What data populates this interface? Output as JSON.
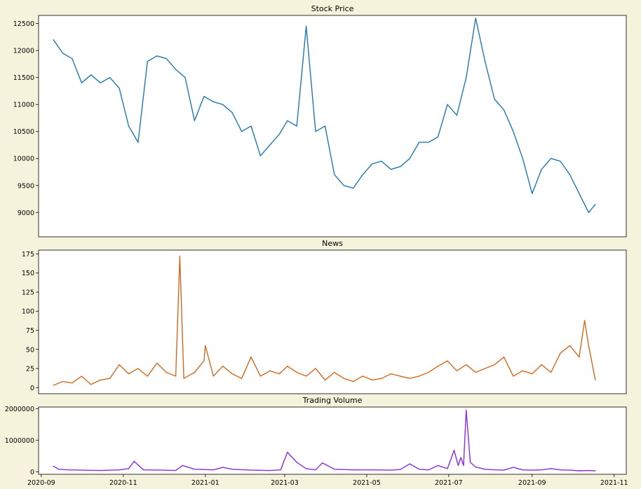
{
  "chart_data": [
    {
      "type": "line",
      "title": "Stock Price",
      "color": "#1f78b4",
      "ylim": [
        8550,
        12650
      ],
      "yticks": [
        9000,
        9500,
        10000,
        10500,
        11000,
        11500,
        12000,
        12500
      ],
      "x_range": [
        "2020-08-30",
        "2021-11-10"
      ],
      "x": [
        "2020-09-10",
        "2020-09-17",
        "2020-09-24",
        "2020-10-01",
        "2020-10-08",
        "2020-10-15",
        "2020-10-22",
        "2020-10-29",
        "2020-11-05",
        "2020-11-12",
        "2020-11-19",
        "2020-11-26",
        "2020-12-03",
        "2020-12-10",
        "2020-12-17",
        "2020-12-24",
        "2020-12-31",
        "2021-01-07",
        "2021-01-14",
        "2021-01-21",
        "2021-01-28",
        "2021-02-04",
        "2021-02-11",
        "2021-02-18",
        "2021-02-25",
        "2021-03-03",
        "2021-03-10",
        "2021-03-17",
        "2021-03-24",
        "2021-03-31",
        "2021-04-07",
        "2021-04-14",
        "2021-04-21",
        "2021-04-28",
        "2021-05-05",
        "2021-05-12",
        "2021-05-19",
        "2021-05-26",
        "2021-06-02",
        "2021-06-09",
        "2021-06-16",
        "2021-06-23",
        "2021-06-30",
        "2021-07-07",
        "2021-07-14",
        "2021-07-21",
        "2021-07-28",
        "2021-08-04",
        "2021-08-11",
        "2021-08-18",
        "2021-08-25",
        "2021-09-01",
        "2021-09-08",
        "2021-09-15",
        "2021-09-22",
        "2021-09-29",
        "2021-10-06",
        "2021-10-13"
      ],
      "values": [
        12200,
        11950,
        11850,
        11400,
        11550,
        11400,
        11500,
        11300,
        10600,
        10300,
        11800,
        11900,
        11850,
        11650,
        11500,
        10700,
        11150,
        11050,
        11000,
        10850,
        10500,
        10600,
        10050,
        10250,
        10450,
        10700,
        10600,
        12450,
        10500,
        10600,
        9700,
        9500,
        9450,
        9700,
        9900,
        9950,
        9800,
        9850,
        10000,
        10300,
        10300,
        10400,
        11000,
        10800,
        11500,
        12600,
        11800,
        11100,
        10900,
        10500,
        10000,
        9350,
        9800,
        10000,
        9950,
        9700,
        9350,
        9000
      ],
      "segments_note": "line continues to 2021-10-18 at 9150",
      "end_x": "2021-10-18",
      "end_value": 9150
    },
    {
      "type": "line",
      "title": "News",
      "color": "#d2691e",
      "ylim": [
        -8,
        180
      ],
      "yticks": [
        0,
        25,
        50,
        75,
        100,
        125,
        150,
        175
      ],
      "x_range": [
        "2020-08-30",
        "2021-11-10"
      ],
      "x": [
        "2020-09-10",
        "2020-09-17",
        "2020-09-24",
        "2020-10-01",
        "2020-10-08",
        "2020-10-15",
        "2020-10-22",
        "2020-10-29",
        "2020-11-05",
        "2020-11-12",
        "2020-11-19",
        "2020-11-26",
        "2020-12-03",
        "2020-12-10",
        "2020-12-13",
        "2020-12-16",
        "2020-12-24",
        "2020-12-31",
        "2021-01-01",
        "2021-01-07",
        "2021-01-14",
        "2021-01-21",
        "2021-01-28",
        "2021-02-04",
        "2021-02-11",
        "2021-02-18",
        "2021-02-25",
        "2021-03-03",
        "2021-03-10",
        "2021-03-17",
        "2021-03-24",
        "2021-03-31",
        "2021-04-07",
        "2021-04-14",
        "2021-04-21",
        "2021-04-28",
        "2021-05-05",
        "2021-05-12",
        "2021-05-19",
        "2021-05-26",
        "2021-06-02",
        "2021-06-09",
        "2021-06-16",
        "2021-06-23",
        "2021-06-30",
        "2021-07-07",
        "2021-07-14",
        "2021-07-21",
        "2021-07-28",
        "2021-08-04",
        "2021-08-11",
        "2021-08-18",
        "2021-08-25",
        "2021-09-01",
        "2021-09-08",
        "2021-09-15",
        "2021-09-22",
        "2021-09-29",
        "2021-10-06",
        "2021-10-10",
        "2021-10-13",
        "2021-10-18"
      ],
      "values": [
        3,
        8,
        6,
        15,
        4,
        10,
        12,
        30,
        18,
        25,
        15,
        32,
        20,
        15,
        172,
        12,
        20,
        35,
        55,
        15,
        28,
        18,
        12,
        40,
        15,
        22,
        18,
        28,
        20,
        15,
        25,
        10,
        20,
        12,
        8,
        15,
        10,
        12,
        18,
        15,
        12,
        15,
        20,
        28,
        35,
        22,
        30,
        20,
        25,
        30,
        40,
        15,
        22,
        18,
        30,
        20,
        45,
        55,
        40,
        88,
        55,
        10
      ],
      "end_x": "2021-10-18",
      "end_value": 10
    },
    {
      "type": "line",
      "title": "Trading Volume",
      "color": "#8a2be2",
      "ylim": [
        -80000,
        2050000
      ],
      "yticks": [
        0,
        1000000,
        2000000
      ],
      "xticks": [
        "2020-09",
        "2020-11",
        "2021-01",
        "2021-03",
        "2021-05",
        "2021-07",
        "2021-09",
        "2021-11"
      ],
      "x_range": [
        "2020-08-30",
        "2021-11-10"
      ],
      "x": [
        "2020-09-10",
        "2020-09-14",
        "2020-09-21",
        "2020-10-01",
        "2020-10-15",
        "2020-10-29",
        "2020-11-05",
        "2020-11-09",
        "2020-11-16",
        "2020-11-30",
        "2020-12-10",
        "2020-12-15",
        "2020-12-24",
        "2021-01-07",
        "2021-01-14",
        "2021-01-21",
        "2021-02-04",
        "2021-02-18",
        "2021-02-26",
        "2021-03-03",
        "2021-03-10",
        "2021-03-17",
        "2021-03-24",
        "2021-03-29",
        "2021-04-07",
        "2021-04-21",
        "2021-05-05",
        "2021-05-19",
        "2021-05-26",
        "2021-06-02",
        "2021-06-09",
        "2021-06-16",
        "2021-06-23",
        "2021-06-30",
        "2021-07-05",
        "2021-07-08",
        "2021-07-10",
        "2021-07-12",
        "2021-07-14",
        "2021-07-17",
        "2021-07-21",
        "2021-07-28",
        "2021-08-04",
        "2021-08-11",
        "2021-08-18",
        "2021-08-25",
        "2021-09-01",
        "2021-09-08",
        "2021-09-15",
        "2021-09-22",
        "2021-09-29",
        "2021-10-06",
        "2021-10-13",
        "2021-10-18"
      ],
      "values": [
        180000,
        80000,
        60000,
        50000,
        40000,
        60000,
        100000,
        330000,
        60000,
        50000,
        40000,
        200000,
        80000,
        60000,
        140000,
        80000,
        50000,
        40000,
        60000,
        620000,
        300000,
        100000,
        60000,
        280000,
        80000,
        60000,
        60000,
        50000,
        70000,
        250000,
        80000,
        60000,
        200000,
        100000,
        680000,
        200000,
        450000,
        200000,
        1950000,
        300000,
        150000,
        80000,
        60000,
        50000,
        140000,
        60000,
        50000,
        60000,
        100000,
        60000,
        50000,
        30000,
        40000,
        30000
      ],
      "end_x": "2021-10-18",
      "end_value": 30000
    }
  ]
}
